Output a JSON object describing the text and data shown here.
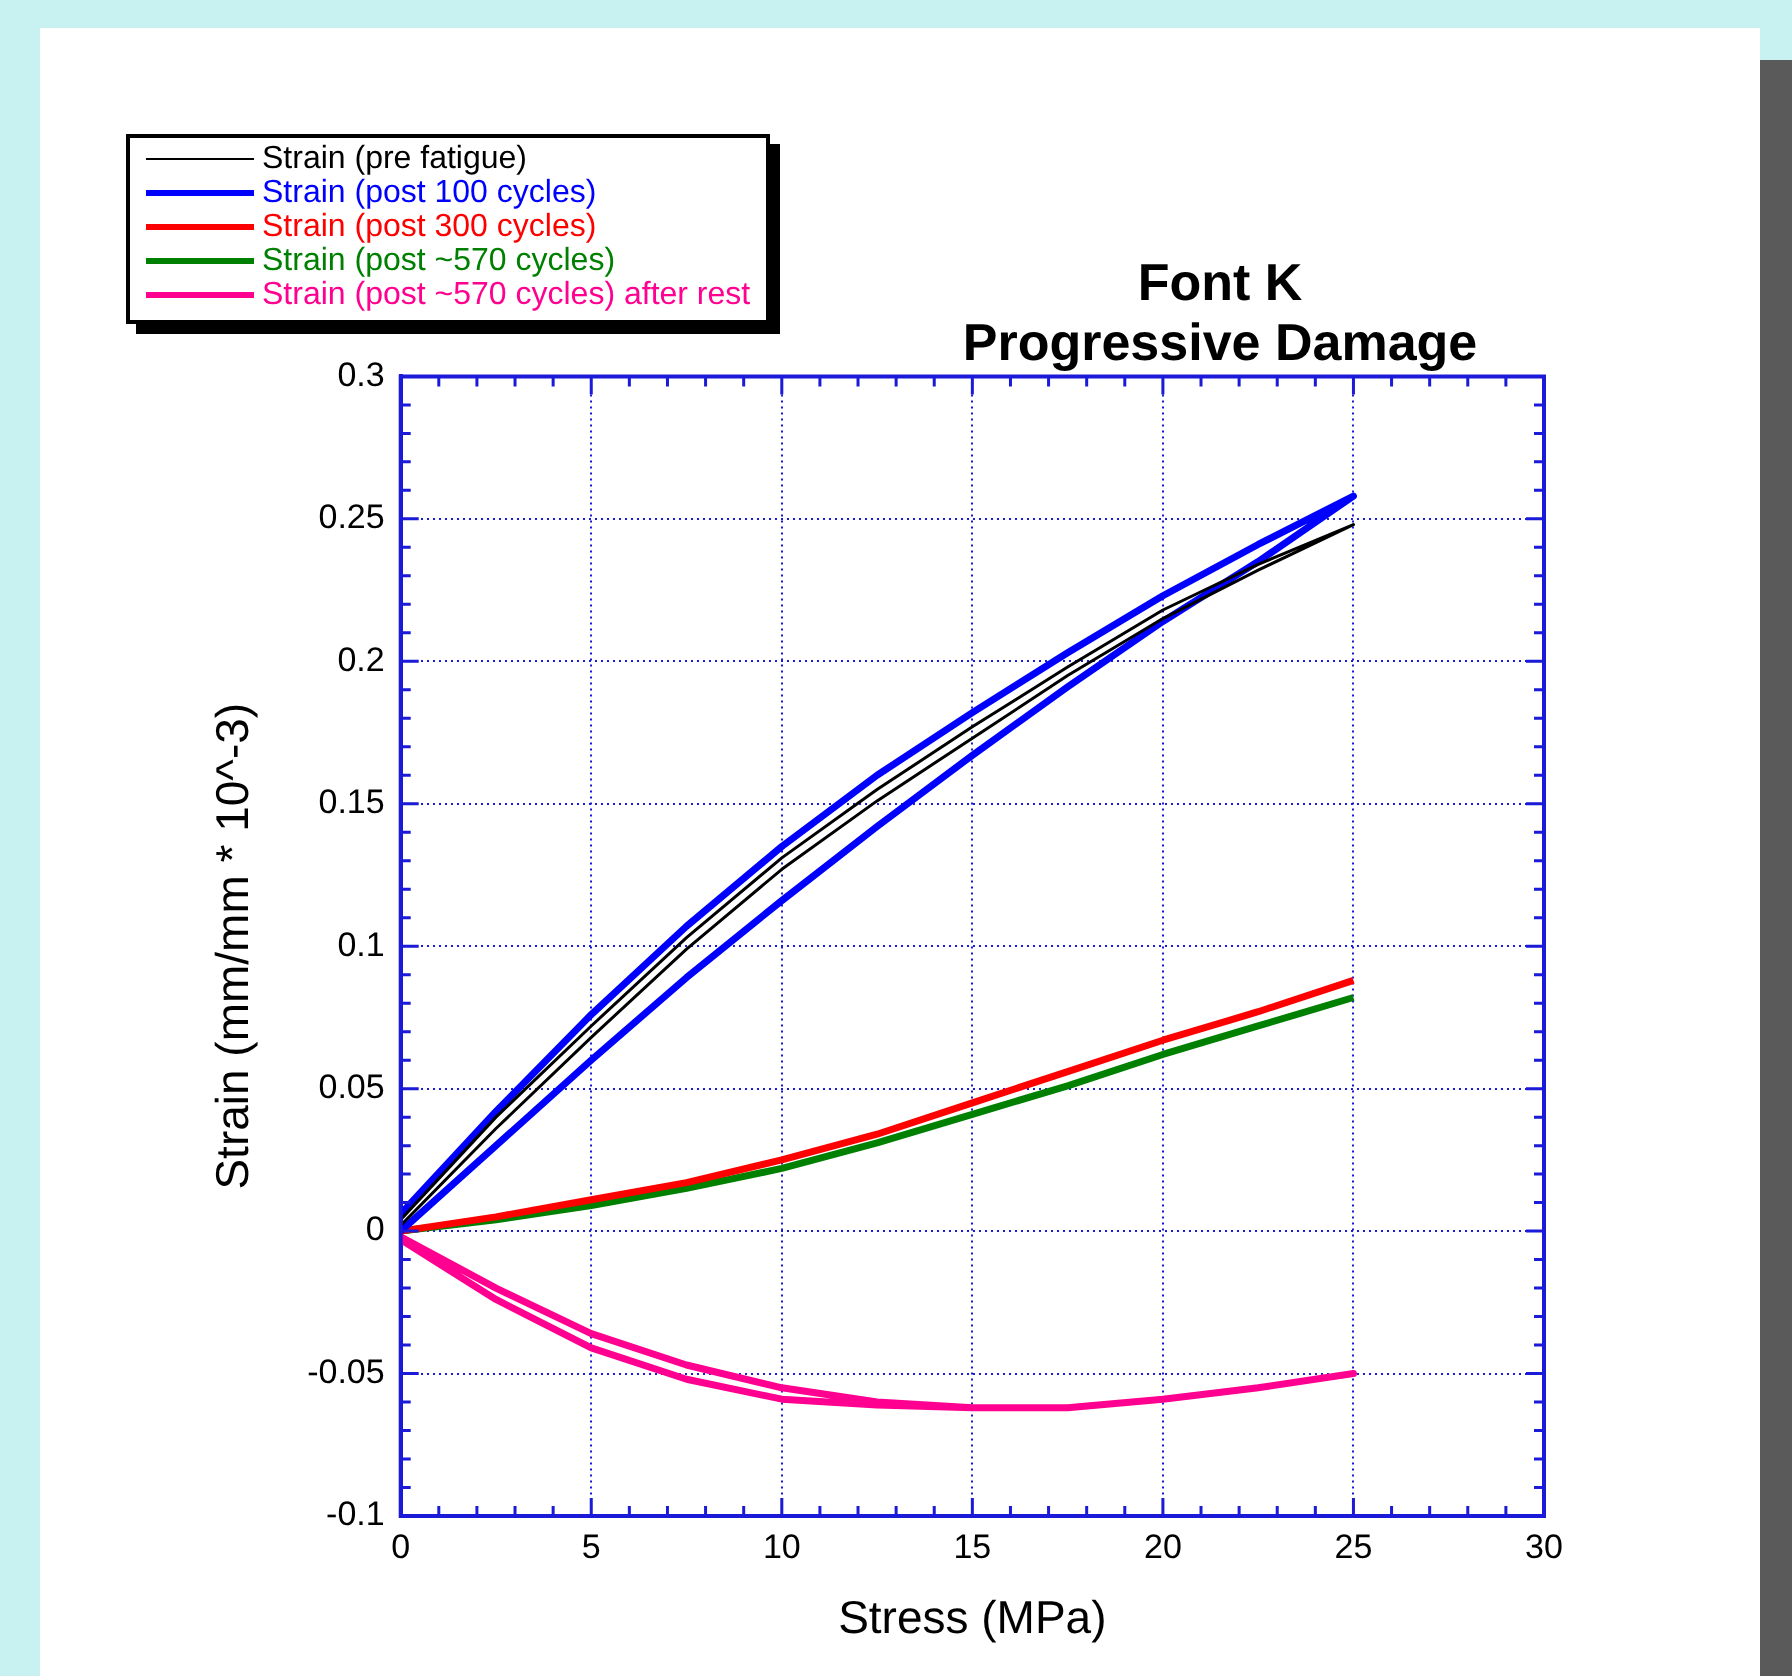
{
  "chart_data": {
    "type": "line",
    "title": "Font K\nProgressive Damage",
    "xlabel": "Stress (MPa)",
    "ylabel": "Strain (mm/mm * 10^-3)",
    "xlim": [
      0,
      30
    ],
    "ylim": [
      -0.1,
      0.3
    ],
    "xticks": [
      0,
      {
        "value": 1,
        "label": null
      },
      {
        "value": 2,
        "label": null
      },
      {
        "value": 3,
        "label": null
      },
      {
        "value": 4,
        "label": null
      },
      5,
      {
        "value": 6,
        "label": null
      },
      {
        "value": 7,
        "label": null
      },
      {
        "value": 8,
        "label": null
      },
      {
        "value": 9,
        "label": null
      },
      10,
      {
        "value": 11,
        "label": null
      },
      {
        "value": 12,
        "label": null
      },
      {
        "value": 13,
        "label": null
      },
      {
        "value": 14,
        "label": null
      },
      15,
      {
        "value": 16,
        "label": null
      },
      {
        "value": 17,
        "label": null
      },
      {
        "value": 18,
        "label": null
      },
      {
        "value": 19,
        "label": null
      },
      20,
      {
        "value": 21,
        "label": null
      },
      {
        "value": 22,
        "label": null
      },
      {
        "value": 23,
        "label": null
      },
      {
        "value": 24,
        "label": null
      },
      25,
      {
        "value": 26,
        "label": null
      },
      {
        "value": 27,
        "label": null
      },
      {
        "value": 28,
        "label": null
      },
      {
        "value": 29,
        "label": null
      },
      30
    ],
    "yticks": [
      -0.1,
      {
        "value": -0.09,
        "label": null
      },
      {
        "value": -0.08,
        "label": null
      },
      {
        "value": -0.07,
        "label": null
      },
      {
        "value": -0.06,
        "label": null
      },
      -0.05,
      {
        "value": -0.04,
        "label": null
      },
      {
        "value": -0.03,
        "label": null
      },
      {
        "value": -0.02,
        "label": null
      },
      {
        "value": -0.01,
        "label": null
      },
      0,
      {
        "value": 0.01,
        "label": null
      },
      {
        "value": 0.02,
        "label": null
      },
      {
        "value": 0.03,
        "label": null
      },
      {
        "value": 0.04,
        "label": null
      },
      0.05,
      {
        "value": 0.06,
        "label": null
      },
      {
        "value": 0.07,
        "label": null
      },
      {
        "value": 0.08,
        "label": null
      },
      {
        "value": 0.09,
        "label": null
      },
      0.1,
      {
        "value": 0.11,
        "label": null
      },
      {
        "value": 0.12,
        "label": null
      },
      {
        "value": 0.13,
        "label": null
      },
      {
        "value": 0.14,
        "label": null
      },
      0.15,
      {
        "value": 0.16,
        "label": null
      },
      {
        "value": 0.17,
        "label": null
      },
      {
        "value": 0.18,
        "label": null
      },
      {
        "value": 0.19,
        "label": null
      },
      0.2,
      {
        "value": 0.21,
        "label": null
      },
      {
        "value": 0.22,
        "label": null
      },
      {
        "value": 0.23,
        "label": null
      },
      {
        "value": 0.24,
        "label": null
      },
      0.25,
      {
        "value": 0.26,
        "label": null
      },
      {
        "value": 0.27,
        "label": null
      },
      {
        "value": 0.28,
        "label": null
      },
      {
        "value": 0.29,
        "label": null
      },
      0.3
    ],
    "grid": true,
    "legend": "top left",
    "marker": "none",
    "line_style": "solid",
    "series": [
      {
        "name": "Strain (pre fatigue)",
        "color": "#000000",
        "x": [
          0,
          2.5,
          5,
          7.5,
          10,
          12.5,
          15,
          17.5,
          20,
          22.5,
          25,
          22.5,
          20,
          17.5,
          15,
          12.5,
          10,
          7.5,
          5,
          2.5,
          0
        ],
        "values": [
          0.004,
          0.04,
          0.072,
          0.103,
          0.131,
          0.155,
          0.177,
          0.198,
          0.218,
          0.234,
          0.248,
          0.232,
          0.215,
          0.195,
          0.173,
          0.151,
          0.127,
          0.099,
          0.068,
          0.036,
          0.002
        ]
      },
      {
        "name": "Strain (post 100 cycles)",
        "color": "#0000ff",
        "x": [
          0,
          2.5,
          5,
          7.5,
          10,
          12.5,
          15,
          17.5,
          20,
          22.5,
          25,
          22.5,
          20,
          17.5,
          15,
          12.5,
          10,
          7.5,
          5,
          2.5,
          0
        ],
        "values": [
          0.006,
          0.042,
          0.076,
          0.107,
          0.135,
          0.16,
          0.182,
          0.203,
          0.223,
          0.241,
          0.258,
          0.235,
          0.214,
          0.191,
          0.167,
          0.142,
          0.116,
          0.089,
          0.06,
          0.03,
          0.0
        ]
      },
      {
        "name": "Strain (post 300 cycles)",
        "color": "#ff0000",
        "x": [
          0,
          2.5,
          5,
          7.5,
          10,
          12.5,
          15,
          17.5,
          20,
          22.5,
          25
        ],
        "values": [
          0,
          0.005,
          0.011,
          0.017,
          0.025,
          0.034,
          0.045,
          0.056,
          0.067,
          0.077,
          0.088
        ]
      },
      {
        "name": "Strain (post ~570 cycles)",
        "color": "#008000",
        "x": [
          0,
          2.5,
          5,
          7.5,
          10,
          12.5,
          15,
          17.5,
          20,
          22.5,
          25
        ],
        "values": [
          0,
          0.004,
          0.009,
          0.015,
          0.022,
          0.031,
          0.041,
          0.051,
          0.062,
          0.072,
          0.082
        ]
      },
      {
        "name": "Strain (post ~570 cycles) after rest",
        "color": "#ff0090",
        "x": [
          0,
          2.5,
          5,
          7.5,
          10,
          12.5,
          15,
          17.5,
          20,
          22.5,
          25,
          22.5,
          20,
          17.5,
          15,
          12.5,
          10,
          7.5,
          5,
          2.5,
          0
        ],
        "values": [
          -0.002,
          -0.02,
          -0.036,
          -0.047,
          -0.055,
          -0.06,
          -0.062,
          -0.062,
          -0.059,
          -0.055,
          -0.05,
          -0.055,
          -0.059,
          -0.062,
          -0.062,
          -0.061,
          -0.059,
          -0.052,
          -0.041,
          -0.024,
          -0.003
        ]
      }
    ]
  }
}
